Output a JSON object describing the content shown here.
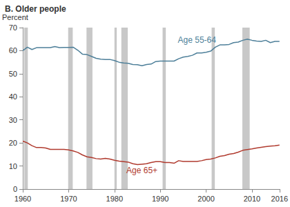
{
  "chart_data": {
    "type": "line",
    "title": "B. Older people",
    "y_label": "Percent",
    "x": [
      1960,
      1961,
      1962,
      1963,
      1964,
      1965,
      1966,
      1967,
      1968,
      1969,
      1970,
      1971,
      1972,
      1973,
      1974,
      1975,
      1976,
      1977,
      1978,
      1979,
      1980,
      1981,
      1982,
      1983,
      1984,
      1985,
      1986,
      1987,
      1988,
      1989,
      1990,
      1991,
      1992,
      1993,
      1994,
      1995,
      1996,
      1997,
      1998,
      1999,
      2000,
      2001,
      2002,
      2003,
      2004,
      2005,
      2006,
      2007,
      2008,
      2009,
      2010,
      2011,
      2012,
      2013,
      2014,
      2015,
      2016
    ],
    "series": [
      {
        "name": "Age 55-64",
        "color": "#4d7f99",
        "label_x": 1998,
        "label_y": 64.5,
        "values": [
          60,
          61.5,
          60.5,
          61.3,
          61.3,
          61.3,
          61.3,
          61.8,
          61.3,
          61.4,
          61.4,
          61.5,
          60.2,
          58.5,
          58.3,
          57.5,
          56.7,
          56.3,
          56.2,
          56.2,
          55.7,
          55,
          54.7,
          54.5,
          54,
          53.9,
          53.5,
          54,
          54.2,
          55.3,
          55.5,
          55.5,
          55.5,
          55.5,
          56.5,
          57.2,
          57.5,
          58,
          59,
          59,
          59.3,
          59.8,
          61.5,
          62.5,
          62.5,
          62.7,
          63.5,
          63.7,
          64.5,
          65,
          64.5,
          64.2,
          64,
          64.5,
          63.5,
          64,
          64
        ]
      },
      {
        "name": "Age 65+",
        "color": "#b03a2e",
        "label_x": 1986,
        "label_y": 8,
        "values": [
          20.8,
          20,
          18.8,
          18,
          18,
          17.8,
          17.2,
          17.2,
          17.2,
          17.2,
          17,
          16.5,
          15.9,
          14.8,
          14,
          13.7,
          13.2,
          13,
          13.3,
          13,
          12.5,
          12.1,
          11.9,
          11.7,
          11,
          10.6,
          10.8,
          11,
          11.5,
          11.9,
          11.9,
          11.5,
          11.5,
          11.2,
          12.3,
          12,
          12,
          12,
          12,
          12.3,
          12.8,
          13,
          13.5,
          14.2,
          14.5,
          15.1,
          15.4,
          16,
          16.8,
          17.1,
          17.4,
          17.8,
          18.1,
          18.4,
          18.6,
          18.8,
          19.1
        ]
      }
    ],
    "recessions": [
      [
        1960.3,
        1961.1
      ],
      [
        1969.9,
        1970.9
      ],
      [
        1973.9,
        1975.2
      ],
      [
        1980.0,
        1980.5
      ],
      [
        1981.5,
        1982.9
      ],
      [
        1990.5,
        1991.2
      ],
      [
        2001.2,
        2001.9
      ],
      [
        2007.9,
        2009.5
      ]
    ],
    "xlim": [
      1960,
      2016
    ],
    "xticks": [
      1960,
      1970,
      1980,
      1990,
      2000,
      2010
    ],
    "ylim": [
      0,
      70
    ],
    "yticks": [
      0,
      10,
      20,
      30,
      40,
      50,
      60,
      70
    ],
    "grid": false
  }
}
